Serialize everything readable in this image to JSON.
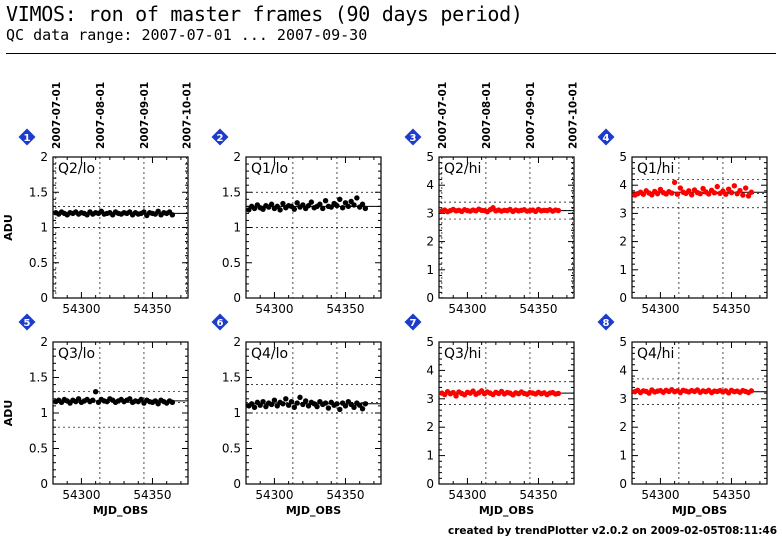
{
  "title": "VIMOS: ron of master frames (90 days period)",
  "subtitle": "QC data range: 2007-07-01 ... 2007-09-30",
  "footer": "created by trendPlotter v2.0.2 on 2009-02-05T08:11:46",
  "colors": {
    "lo": "#000000",
    "hi": "#ff0000",
    "badge": "#1e3ccc"
  },
  "chart_data": [
    {
      "type": "scatter",
      "badge": "1",
      "label": "Q2/lo",
      "ylabel": "ADU",
      "xlabel": "",
      "xlim": [
        54280,
        54375
      ],
      "ylim": [
        0,
        2
      ],
      "yticks": [
        0,
        0.5,
        1,
        1.5,
        2
      ],
      "xticks": [
        54300,
        54350
      ],
      "date_ticks": [
        "2007-07-01",
        "2007-08-01",
        "2007-09-01",
        "2007-10-01"
      ],
      "date_mjd": [
        54282,
        54313,
        54344,
        54374
      ],
      "ref_lines": [
        1.0,
        1.2,
        1.3
      ],
      "mean": 1.2,
      "color": "lo",
      "x": [
        54282,
        54284,
        54286,
        54288,
        54290,
        54292,
        54294,
        54296,
        54298,
        54300,
        54302,
        54304,
        54306,
        54308,
        54310,
        54312,
        54314,
        54316,
        54318,
        54320,
        54322,
        54324,
        54326,
        54328,
        54330,
        54332,
        54334,
        54336,
        54338,
        54340,
        54342,
        54344,
        54346,
        54348,
        54350,
        54352,
        54354,
        54356,
        54358,
        54360,
        54362,
        54364
      ],
      "y": [
        1.21,
        1.19,
        1.22,
        1.2,
        1.18,
        1.21,
        1.2,
        1.22,
        1.19,
        1.21,
        1.2,
        1.18,
        1.22,
        1.19,
        1.21,
        1.2,
        1.23,
        1.19,
        1.2,
        1.21,
        1.18,
        1.22,
        1.2,
        1.19,
        1.21,
        1.2,
        1.22,
        1.18,
        1.21,
        1.19,
        1.2,
        1.22,
        1.17,
        1.21,
        1.2,
        1.19,
        1.23,
        1.18,
        1.21,
        1.2,
        1.22,
        1.18
      ]
    },
    {
      "type": "scatter",
      "badge": "2",
      "label": "Q1/lo",
      "ylabel": "",
      "xlabel": "",
      "xlim": [
        54280,
        54375
      ],
      "ylim": [
        0,
        2
      ],
      "yticks": [
        0,
        0.5,
        1,
        1.5,
        2
      ],
      "xticks": [
        54300,
        54350
      ],
      "date_ticks": [],
      "date_mjd": [],
      "ref_lines": [
        1.0,
        1.3,
        1.5
      ],
      "mean": 1.3,
      "color": "lo",
      "x": [
        54282,
        54284,
        54286,
        54288,
        54290,
        54292,
        54294,
        54296,
        54298,
        54300,
        54302,
        54304,
        54306,
        54308,
        54310,
        54312,
        54314,
        54316,
        54318,
        54320,
        54322,
        54324,
        54326,
        54328,
        54330,
        54332,
        54334,
        54336,
        54338,
        54340,
        54342,
        54344,
        54346,
        54348,
        54350,
        54352,
        54354,
        54356,
        54358,
        54360,
        54362,
        54364
      ],
      "y": [
        1.25,
        1.3,
        1.27,
        1.32,
        1.28,
        1.26,
        1.31,
        1.29,
        1.33,
        1.27,
        1.3,
        1.25,
        1.34,
        1.28,
        1.31,
        1.3,
        1.26,
        1.35,
        1.29,
        1.32,
        1.27,
        1.31,
        1.36,
        1.28,
        1.3,
        1.33,
        1.27,
        1.38,
        1.3,
        1.29,
        1.34,
        1.31,
        1.4,
        1.28,
        1.35,
        1.3,
        1.37,
        1.32,
        1.42,
        1.29,
        1.33,
        1.27
      ]
    },
    {
      "type": "scatter",
      "badge": "3",
      "label": "Q2/hi",
      "ylabel": "",
      "xlabel": "",
      "xlim": [
        54280,
        54375
      ],
      "ylim": [
        0,
        5
      ],
      "yticks": [
        0,
        1,
        2,
        3,
        4,
        5
      ],
      "xticks": [
        54300,
        54350
      ],
      "date_ticks": [
        "2007-07-01",
        "2007-08-01",
        "2007-09-01",
        "2007-10-01"
      ],
      "date_mjd": [
        54282,
        54313,
        54344,
        54374
      ],
      "ref_lines": [
        2.8,
        3.1,
        3.4
      ],
      "mean": 3.1,
      "color": "hi",
      "x": [
        54282,
        54284,
        54286,
        54288,
        54290,
        54292,
        54294,
        54296,
        54298,
        54300,
        54302,
        54304,
        54306,
        54308,
        54310,
        54312,
        54314,
        54316,
        54318,
        54320,
        54322,
        54324,
        54326,
        54328,
        54330,
        54332,
        54334,
        54336,
        54338,
        54340,
        54342,
        54344,
        54346,
        54348,
        54350,
        54352,
        54354,
        54356,
        54358,
        54360,
        54362,
        54364
      ],
      "y": [
        3.08,
        3.12,
        3.06,
        3.1,
        3.14,
        3.09,
        3.11,
        3.07,
        3.13,
        3.1,
        3.08,
        3.12,
        3.09,
        3.15,
        3.11,
        3.1,
        3.06,
        3.13,
        3.2,
        3.09,
        3.12,
        3.08,
        3.11,
        3.1,
        3.14,
        3.07,
        3.12,
        3.09,
        3.11,
        3.13,
        3.08,
        3.1,
        3.12,
        3.07,
        3.14,
        3.09,
        3.11,
        3.1,
        3.13,
        3.08,
        3.12,
        3.1
      ]
    },
    {
      "type": "scatter",
      "badge": "4",
      "label": "Q1/hi",
      "ylabel": "",
      "xlabel": "",
      "xlim": [
        54280,
        54375
      ],
      "ylim": [
        0,
        5
      ],
      "yticks": [
        0,
        1,
        2,
        3,
        4,
        5
      ],
      "xticks": [
        54300,
        54350
      ],
      "date_ticks": [],
      "date_mjd": [],
      "ref_lines": [
        3.2,
        3.7,
        4.2
      ],
      "mean": 3.75,
      "color": "hi",
      "x": [
        54282,
        54284,
        54286,
        54288,
        54290,
        54292,
        54294,
        54296,
        54298,
        54300,
        54302,
        54304,
        54306,
        54308,
        54310,
        54312,
        54314,
        54316,
        54318,
        54320,
        54322,
        54324,
        54326,
        54328,
        54330,
        54332,
        54334,
        54336,
        54338,
        54340,
        54342,
        54344,
        54346,
        54348,
        54350,
        54352,
        54354,
        54356,
        54358,
        54360,
        54362,
        54364
      ],
      "y": [
        3.65,
        3.7,
        3.75,
        3.68,
        3.8,
        3.72,
        3.66,
        3.78,
        3.7,
        3.85,
        3.74,
        3.69,
        3.77,
        3.72,
        4.1,
        3.68,
        3.9,
        3.75,
        3.71,
        3.8,
        3.66,
        3.83,
        3.74,
        3.7,
        3.88,
        3.76,
        3.69,
        3.82,
        3.73,
        3.95,
        3.71,
        3.79,
        3.68,
        3.86,
        3.74,
        3.98,
        3.7,
        3.81,
        3.65,
        3.9,
        3.62,
        3.75
      ]
    },
    {
      "type": "scatter",
      "badge": "5",
      "label": "Q3/lo",
      "ylabel": "ADU",
      "xlabel": "",
      "xlim": [
        54280,
        54375
      ],
      "ylim": [
        0,
        2
      ],
      "yticks": [
        0,
        0.5,
        1,
        1.5,
        2
      ],
      "xticks": [
        54300,
        54350
      ],
      "date_ticks": [],
      "date_mjd": [],
      "ref_lines": [
        0.8,
        1.15,
        1.3
      ],
      "mean": 1.17,
      "color": "lo",
      "x": [
        54282,
        54284,
        54286,
        54288,
        54290,
        54292,
        54294,
        54296,
        54298,
        54300,
        54302,
        54304,
        54306,
        54308,
        54310,
        54312,
        54314,
        54316,
        54318,
        54320,
        54322,
        54324,
        54326,
        54328,
        54330,
        54332,
        54334,
        54336,
        54338,
        54340,
        54342,
        54344,
        54346,
        54348,
        54350,
        54352,
        54354,
        54356,
        54358,
        54360,
        54362,
        54364
      ],
      "y": [
        1.16,
        1.18,
        1.15,
        1.19,
        1.17,
        1.14,
        1.18,
        1.16,
        1.2,
        1.15,
        1.17,
        1.19,
        1.16,
        1.18,
        1.3,
        1.15,
        1.19,
        1.17,
        1.16,
        1.2,
        1.18,
        1.15,
        1.17,
        1.19,
        1.16,
        1.18,
        1.2,
        1.15,
        1.17,
        1.16,
        1.19,
        1.14,
        1.18,
        1.16,
        1.15,
        1.17,
        1.13,
        1.18,
        1.16,
        1.14,
        1.17,
        1.15
      ]
    },
    {
      "type": "scatter",
      "badge": "6",
      "label": "Q4/lo",
      "ylabel": "",
      "xlabel": "",
      "xlim": [
        54280,
        54375
      ],
      "ylim": [
        0,
        2
      ],
      "yticks": [
        0,
        0.5,
        1,
        1.5,
        2
      ],
      "xticks": [
        54300,
        54350
      ],
      "date_ticks": [],
      "date_mjd": [],
      "ref_lines": [
        1.0,
        1.15,
        1.4
      ],
      "mean": 1.13,
      "color": "lo",
      "x": [
        54282,
        54284,
        54286,
        54288,
        54290,
        54292,
        54294,
        54296,
        54298,
        54300,
        54302,
        54304,
        54306,
        54308,
        54310,
        54312,
        54314,
        54316,
        54318,
        54320,
        54322,
        54324,
        54326,
        54328,
        54330,
        54332,
        54334,
        54336,
        54338,
        54340,
        54342,
        54344,
        54346,
        54348,
        54350,
        54352,
        54354,
        54356,
        54358,
        54360,
        54362,
        54364
      ],
      "y": [
        1.1,
        1.13,
        1.08,
        1.15,
        1.11,
        1.16,
        1.09,
        1.14,
        1.12,
        1.18,
        1.1,
        1.15,
        1.13,
        1.2,
        1.11,
        1.16,
        1.08,
        1.14,
        1.22,
        1.12,
        1.17,
        1.1,
        1.15,
        1.13,
        1.09,
        1.16,
        1.12,
        1.14,
        1.07,
        1.15,
        1.11,
        1.13,
        1.05,
        1.14,
        1.1,
        1.16,
        1.12,
        1.08,
        1.14,
        1.11,
        1.06,
        1.13
      ]
    },
    {
      "type": "scatter",
      "badge": "7",
      "label": "Q3/hi",
      "ylabel": "",
      "xlabel": "MJD_OBS",
      "xlim": [
        54280,
        54375
      ],
      "ylim": [
        0,
        5
      ],
      "yticks": [
        0,
        1,
        2,
        3,
        4,
        5
      ],
      "xticks": [
        54300,
        54350
      ],
      "date_ticks": [],
      "date_mjd": [],
      "ref_lines": [
        2.8,
        3.2,
        3.6
      ],
      "mean": 3.2,
      "color": "hi",
      "x": [
        54282,
        54284,
        54286,
        54288,
        54290,
        54292,
        54294,
        54296,
        54298,
        54300,
        54302,
        54304,
        54306,
        54308,
        54310,
        54312,
        54314,
        54316,
        54318,
        54320,
        54322,
        54324,
        54326,
        54328,
        54330,
        54332,
        54334,
        54336,
        54338,
        54340,
        54342,
        54344,
        54346,
        54348,
        54350,
        54352,
        54354,
        54356,
        54358,
        54360,
        54362,
        54364
      ],
      "y": [
        3.2,
        3.15,
        3.25,
        3.18,
        3.22,
        3.1,
        3.24,
        3.19,
        3.14,
        3.23,
        3.2,
        3.27,
        3.16,
        3.21,
        3.28,
        3.18,
        3.24,
        3.2,
        3.15,
        3.23,
        3.19,
        3.26,
        3.17,
        3.22,
        3.2,
        3.14,
        3.21,
        3.18,
        3.24,
        3.19,
        3.16,
        3.22,
        3.2,
        3.17,
        3.23,
        3.18,
        3.21,
        3.15,
        3.2,
        3.22,
        3.17,
        3.19
      ]
    },
    {
      "type": "scatter",
      "badge": "8",
      "label": "Q4/hi",
      "ylabel": "",
      "xlabel": "MJD_OBS",
      "xlim": [
        54280,
        54375
      ],
      "ylim": [
        0,
        5
      ],
      "yticks": [
        0,
        1,
        2,
        3,
        4,
        5
      ],
      "xticks": [
        54300,
        54350
      ],
      "date_ticks": [],
      "date_mjd": [],
      "ref_lines": [
        2.8,
        3.25,
        3.7
      ],
      "mean": 3.25,
      "color": "hi",
      "x": [
        54282,
        54284,
        54286,
        54288,
        54290,
        54292,
        54294,
        54296,
        54298,
        54300,
        54302,
        54304,
        54306,
        54308,
        54310,
        54312,
        54314,
        54316,
        54318,
        54320,
        54322,
        54324,
        54326,
        54328,
        54330,
        54332,
        54334,
        54336,
        54338,
        54340,
        54342,
        54344,
        54346,
        54348,
        54350,
        54352,
        54354,
        54356,
        54358,
        54360,
        54362,
        54364
      ],
      "y": [
        3.25,
        3.3,
        3.22,
        3.28,
        3.26,
        3.2,
        3.31,
        3.24,
        3.27,
        3.29,
        3.23,
        3.3,
        3.26,
        3.32,
        3.25,
        3.28,
        3.22,
        3.3,
        3.27,
        3.24,
        3.29,
        3.26,
        3.31,
        3.23,
        3.28,
        3.25,
        3.3,
        3.22,
        3.27,
        3.26,
        3.29,
        3.24,
        3.28,
        3.21,
        3.3,
        3.25,
        3.27,
        3.23,
        3.29,
        3.26,
        3.22,
        3.28
      ]
    }
  ]
}
